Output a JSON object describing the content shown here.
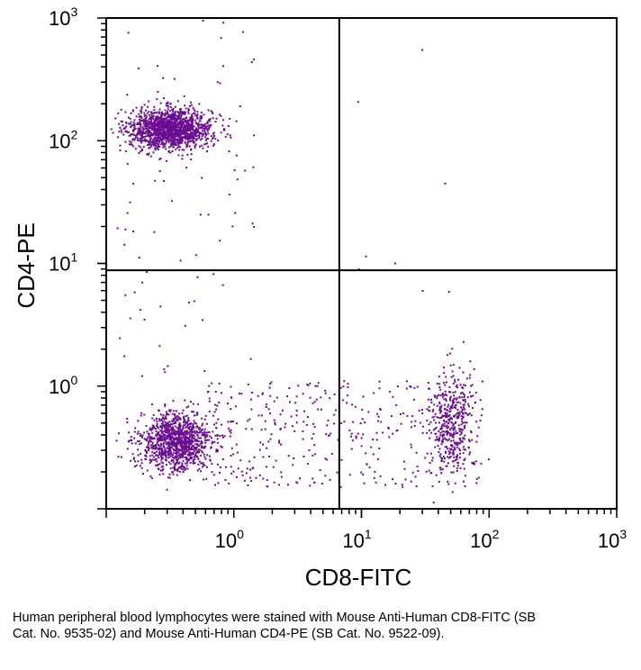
{
  "chart_data": {
    "type": "scatter",
    "title": "",
    "xlabel": "CD8-FITC",
    "ylabel": "CD4-PE",
    "xscale": "log",
    "yscale": "log",
    "xlim": [
      0.1,
      1000
    ],
    "ylim": [
      0.1,
      1000
    ],
    "x_ticks": [
      {
        "value": 1,
        "base": "10",
        "exp": "0"
      },
      {
        "value": 10,
        "base": "10",
        "exp": "1"
      },
      {
        "value": 100,
        "base": "10",
        "exp": "2"
      },
      {
        "value": 1000,
        "base": "10",
        "exp": "3"
      }
    ],
    "y_ticks": [
      {
        "value": 1,
        "base": "10",
        "exp": "0"
      },
      {
        "value": 10,
        "base": "10",
        "exp": "1"
      },
      {
        "value": 100,
        "base": "10",
        "exp": "2"
      },
      {
        "value": 1000,
        "base": "10",
        "exp": "3"
      }
    ],
    "quadrant_gates": {
      "x": 6.7,
      "y": 8.8
    },
    "point_color": "#6a0d91",
    "axis_color": "#000000",
    "populations": [
      {
        "name": "CD4+ CD8- cluster",
        "x_center": 0.32,
        "y_center": 125,
        "x_spread_log": 0.16,
        "y_spread_log": 0.08,
        "count": 1500
      },
      {
        "name": "CD4- CD8- cluster",
        "x_center": 0.35,
        "y_center": 0.35,
        "x_spread_log": 0.14,
        "y_spread_log": 0.12,
        "count": 1100
      },
      {
        "name": "CD4- CD8+ cluster",
        "x_center": 50,
        "y_center": 0.5,
        "x_spread_log": 0.08,
        "y_spread_log": 0.22,
        "count": 420
      },
      {
        "name": "CD4- low intermediate band",
        "x_range": [
          0.5,
          90
        ],
        "y_range": [
          0.15,
          1.1
        ],
        "count": 400
      },
      {
        "name": "CD4 high sparse tail",
        "x_range": [
          0.12,
          1.5
        ],
        "y_range": [
          1.2,
          1000
        ],
        "count": 90
      },
      {
        "name": "CD4+ CD8+ sparse",
        "x_range": [
          8,
          60
        ],
        "y_range": [
          5,
          600
        ],
        "count": 8
      }
    ]
  },
  "caption": "Human peripheral blood lymphocytes were stained with Mouse Anti-Human CD8-FITC (SB Cat. No. 9535-02) and Mouse Anti-Human CD4-PE (SB Cat. No. 9522-09)."
}
